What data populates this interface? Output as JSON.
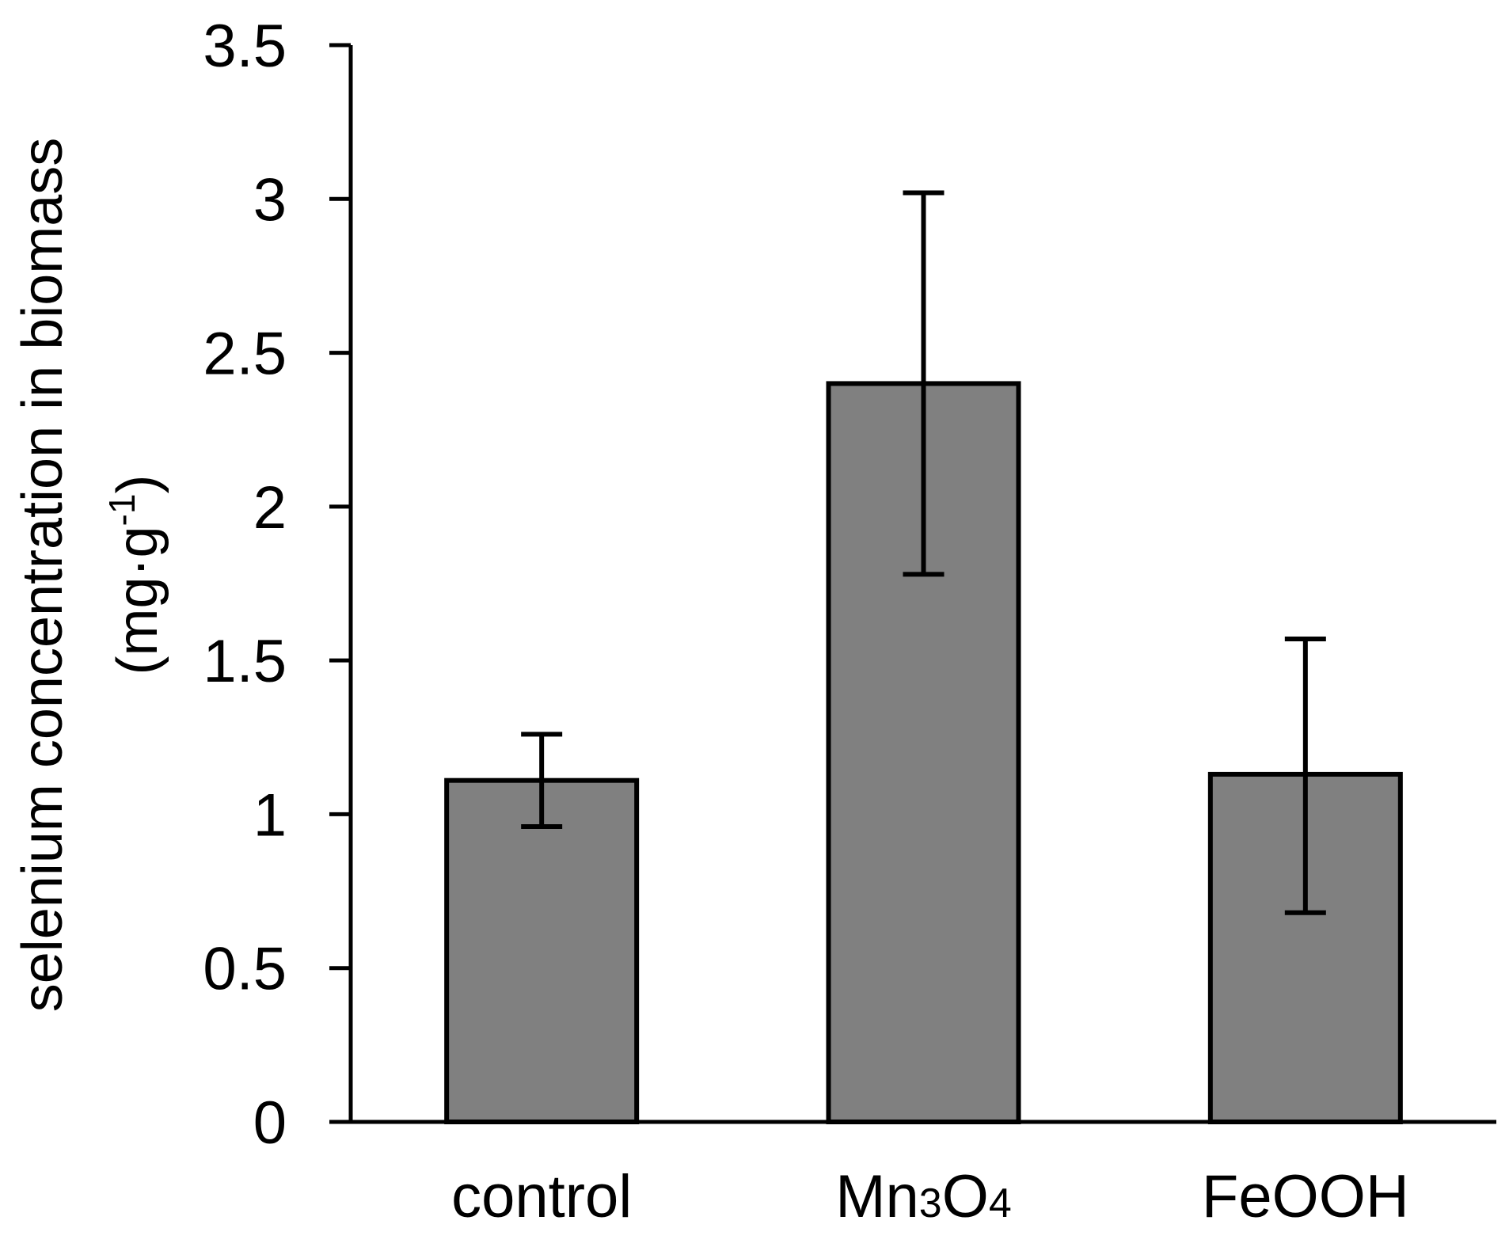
{
  "chart_data": {
    "type": "bar",
    "title": "",
    "xlabel": "",
    "ylabel": "selenium concentration in biomass",
    "ylabel_unit": {
      "base": "(mg·g",
      "sup": "-1",
      "close": ")"
    },
    "categories": [
      {
        "name": "control",
        "parts": [
          {
            "t": "control",
            "sub": false
          }
        ]
      },
      {
        "name": "Mn3O4",
        "parts": [
          {
            "t": "Mn",
            "sub": false
          },
          {
            "t": "3",
            "sub": true
          },
          {
            "t": "O",
            "sub": false
          },
          {
            "t": "4",
            "sub": true
          }
        ]
      },
      {
        "name": "FeOOH",
        "parts": [
          {
            "t": "FeOOH",
            "sub": false
          }
        ]
      }
    ],
    "values": [
      1.11,
      2.4,
      1.13
    ],
    "error_low": [
      0.96,
      1.78,
      0.68
    ],
    "error_high": [
      1.26,
      3.02,
      1.57
    ],
    "ylim": [
      0,
      3.5
    ],
    "yticks": [
      0,
      0.5,
      1,
      1.5,
      2,
      2.5,
      3,
      3.5
    ],
    "ytick_labels": [
      "0",
      "0.5",
      "1",
      "1.5",
      "2",
      "2.5",
      "3",
      "3.5"
    ],
    "bar_color": "#808080",
    "edge_color": "#000000",
    "grid": false,
    "legend": "none"
  }
}
